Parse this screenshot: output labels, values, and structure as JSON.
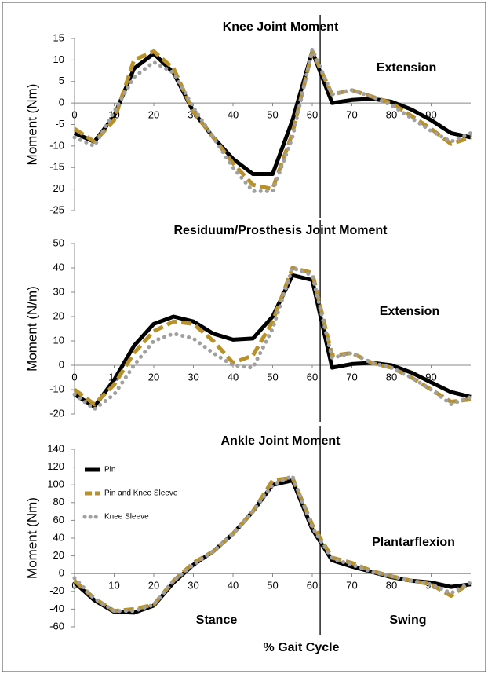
{
  "chart_data": [
    {
      "type": "line",
      "title": "Knee Joint Moment",
      "ylabel": "Moment (Nm)",
      "x": [
        0,
        5,
        10,
        15,
        20,
        25,
        30,
        35,
        40,
        45,
        50,
        55,
        60,
        65,
        70,
        75,
        80,
        85,
        90,
        95,
        100
      ],
      "xlim": [
        0,
        100
      ],
      "xticks": [
        0,
        10,
        20,
        30,
        40,
        50,
        60,
        70,
        80,
        90
      ],
      "ylim": [
        -25,
        15
      ],
      "yticks": [
        -25,
        -20,
        -15,
        -10,
        -5,
        0,
        5,
        10,
        15
      ],
      "vline_x": 62,
      "annotations": [
        "Extension"
      ],
      "series": [
        {
          "color": "#000000",
          "dash": "solid",
          "values": [
            -7,
            -9,
            -3,
            8,
            11.5,
            7,
            -2,
            -8,
            -13,
            -16.5,
            -16.5,
            -4,
            12,
            0,
            0.7,
            1,
            0.3,
            -1.5,
            -4,
            -7,
            -8
          ]
        },
        {
          "color": "#b8912a",
          "dash": "dashed",
          "values": [
            -6,
            -9,
            -4,
            10,
            12,
            8,
            -2,
            -8,
            -14,
            -19,
            -20,
            -7,
            12,
            2,
            3,
            1.5,
            0,
            -3,
            -6,
            -9.5,
            -8
          ]
        },
        {
          "color": "#a0a0a0",
          "dash": "dotted",
          "values": [
            -8,
            -10,
            -2,
            6,
            9.5,
            7,
            -1,
            -8,
            -15,
            -20.5,
            -20.5,
            -8,
            12.5,
            2,
            3,
            1.5,
            -0.5,
            -3.5,
            -6.5,
            -9,
            -7
          ]
        }
      ]
    },
    {
      "type": "line",
      "title": "Residuum/Prosthesis Joint Moment",
      "ylabel": "Moment (N/m)",
      "x": [
        0,
        5,
        10,
        15,
        20,
        25,
        30,
        35,
        40,
        45,
        50,
        55,
        60,
        65,
        70,
        75,
        80,
        85,
        90,
        95,
        100
      ],
      "xlim": [
        0,
        100
      ],
      "xticks": [
        0,
        10,
        20,
        30,
        40,
        50,
        60,
        70,
        80,
        90
      ],
      "ylim": [
        -20,
        50
      ],
      "yticks": [
        -20,
        -10,
        0,
        10,
        20,
        30,
        40,
        50
      ],
      "vline_x": 62,
      "annotations": [
        "Extension"
      ],
      "series": [
        {
          "color": "#000000",
          "dash": "solid",
          "values": [
            -12,
            -17,
            -6,
            8,
            17,
            20,
            18,
            13,
            10.5,
            11,
            20,
            37,
            35,
            -1,
            0.5,
            1,
            0,
            -3,
            -7,
            -11,
            -13
          ]
        },
        {
          "color": "#b8912a",
          "dash": "dashed",
          "values": [
            -10,
            -16,
            -8,
            5,
            14,
            18,
            17,
            10,
            1,
            4,
            18,
            40,
            38,
            4,
            5,
            1,
            -1,
            -5,
            -10,
            -15,
            -14
          ]
        },
        {
          "color": "#a0a0a0",
          "dash": "dotted",
          "values": [
            -12,
            -18,
            -12,
            0,
            10,
            13,
            11,
            5,
            0,
            -1,
            15,
            40,
            37,
            3,
            5,
            1,
            -1,
            -5,
            -10,
            -16,
            -13
          ]
        }
      ]
    },
    {
      "type": "line",
      "title": "Ankle Joint Moment",
      "ylabel": "Moment (Nm)",
      "xlabel": "% Gait Cycle",
      "x": [
        0,
        5,
        10,
        15,
        20,
        25,
        30,
        35,
        40,
        45,
        50,
        55,
        60,
        65,
        70,
        75,
        80,
        85,
        90,
        95,
        100
      ],
      "xlim": [
        0,
        100
      ],
      "xticks": [
        0,
        10,
        20,
        30,
        40,
        50,
        60,
        70,
        80,
        90
      ],
      "ylim": [
        -60,
        140
      ],
      "yticks": [
        -60,
        -40,
        -20,
        0,
        20,
        40,
        60,
        80,
        100,
        120,
        140
      ],
      "vline_x": 62,
      "annotations": [
        "Plantarflexion",
        "Stance",
        "Swing"
      ],
      "series": [
        {
          "name": "Pin",
          "color": "#000000",
          "dash": "solid",
          "values": [
            -10,
            -30,
            -43,
            -44,
            -36,
            -10,
            10,
            25,
            45,
            70,
            100,
            105,
            50,
            15,
            8,
            2,
            -4,
            -8,
            -10,
            -15,
            -12
          ]
        },
        {
          "name": "Pin and Knee Sleeve",
          "color": "#b8912a",
          "dash": "dashed",
          "values": [
            -8,
            -28,
            -42,
            -40,
            -35,
            -8,
            12,
            25,
            45,
            70,
            105,
            108,
            55,
            18,
            12,
            3,
            -3,
            -8,
            -12,
            -25,
            -10
          ]
        },
        {
          "name": "Knee Sleeve",
          "color": "#a0a0a0",
          "dash": "dotted",
          "values": [
            -5,
            -28,
            -42,
            -42,
            -35,
            -8,
            10,
            25,
            45,
            70,
            100,
            110,
            52,
            17,
            10,
            2,
            -3,
            -8,
            -12,
            -22,
            -10
          ]
        }
      ]
    }
  ]
}
